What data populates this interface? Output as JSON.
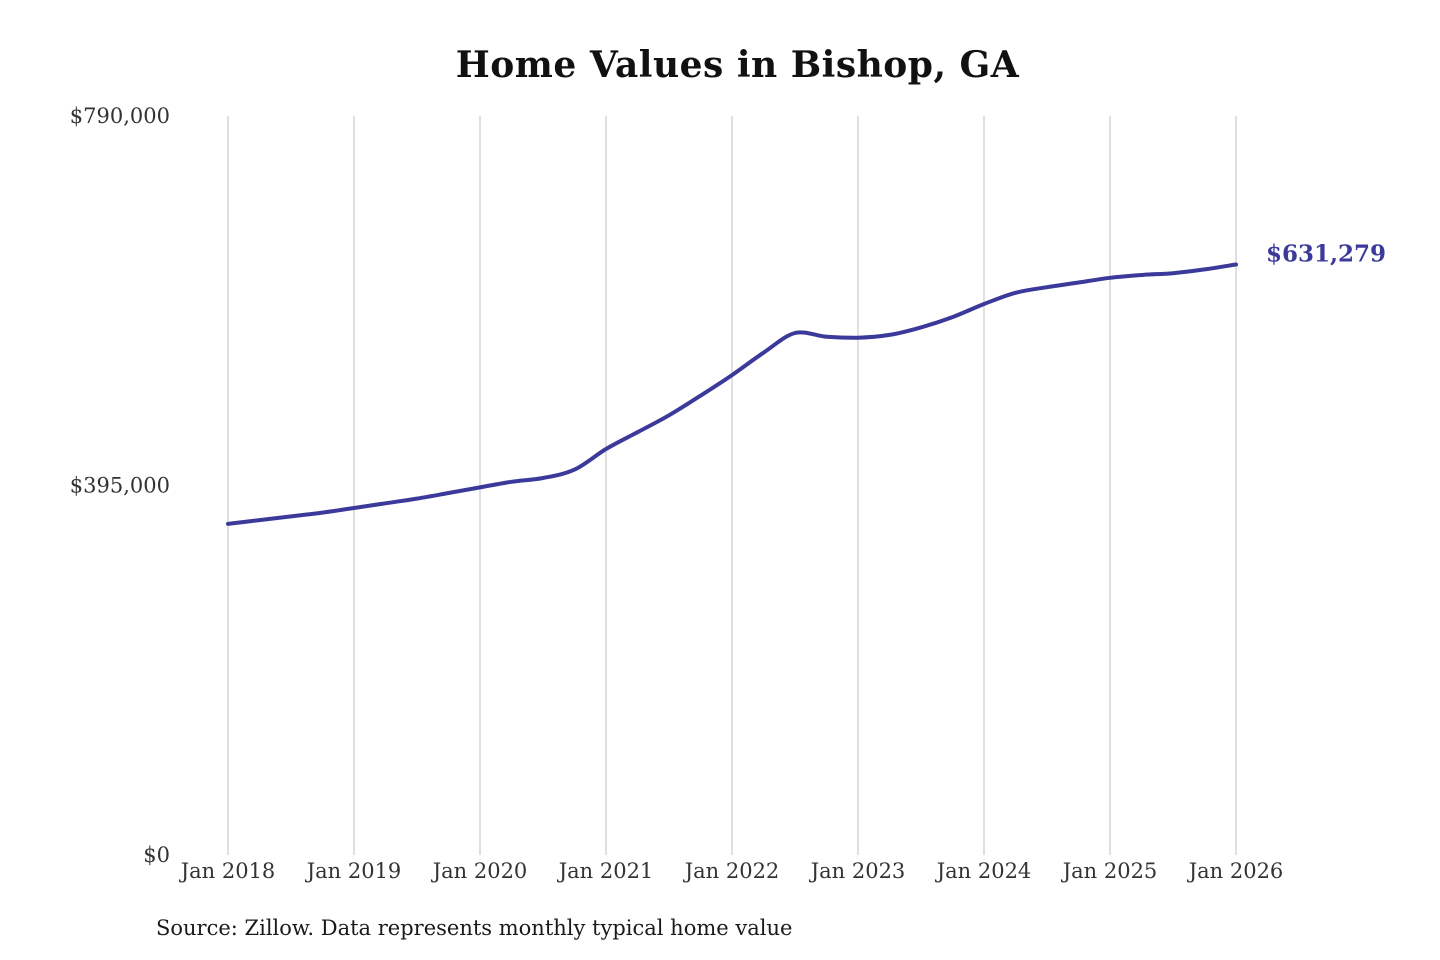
{
  "page": {
    "title": "Home Values in Bishop, GA",
    "source_note": "Source: Zillow. Data represents monthly typical home value"
  },
  "chart_data": {
    "type": "line",
    "title": "Home Values in Bishop, GA",
    "xlabel": "",
    "ylabel": "",
    "xlim": [
      2018,
      2026
    ],
    "ylim": [
      0,
      790000
    ],
    "x_ticks": [
      2018,
      2019,
      2020,
      2021,
      2022,
      2023,
      2024,
      2025,
      2026
    ],
    "x_tick_labels": [
      "Jan 2018",
      "Jan 2019",
      "Jan 2020",
      "Jan 2021",
      "Jan 2022",
      "Jan 2023",
      "Jan 2024",
      "Jan 2025",
      "Jan 2026"
    ],
    "y_ticks": [
      0,
      395000,
      790000
    ],
    "y_tick_labels": [
      "$0",
      "$395,000",
      "$790,000"
    ],
    "grid": "vertical-only",
    "legend": "none",
    "line_color": "#3b3a9a",
    "grid_color": "#cbcbcb",
    "tick_label_color": "#333333",
    "end_label": "$631,279",
    "end_value": 631279,
    "source_note": "Source: Zillow. Data represents monthly typical home value",
    "series": [
      {
        "name": "Monthly typical home value",
        "x": [
          2018.0,
          2018.25,
          2018.5,
          2018.75,
          2019.0,
          2019.25,
          2019.5,
          2019.75,
          2020.0,
          2020.25,
          2020.5,
          2020.75,
          2021.0,
          2021.25,
          2021.5,
          2021.75,
          2022.0,
          2022.25,
          2022.5,
          2022.75,
          2023.0,
          2023.25,
          2023.5,
          2023.75,
          2024.0,
          2024.25,
          2024.5,
          2024.75,
          2025.0,
          2025.25,
          2025.5,
          2025.75,
          2026.0
        ],
        "values": [
          354000,
          358000,
          362000,
          366000,
          371000,
          376000,
          381000,
          387000,
          393000,
          399000,
          403000,
          412000,
          434000,
          452000,
          470000,
          491000,
          513000,
          537000,
          558000,
          554000,
          553000,
          556000,
          564000,
          575000,
          589000,
          601000,
          607000,
          612000,
          617000,
          620000,
          622000,
          626000,
          631279
        ]
      }
    ]
  }
}
